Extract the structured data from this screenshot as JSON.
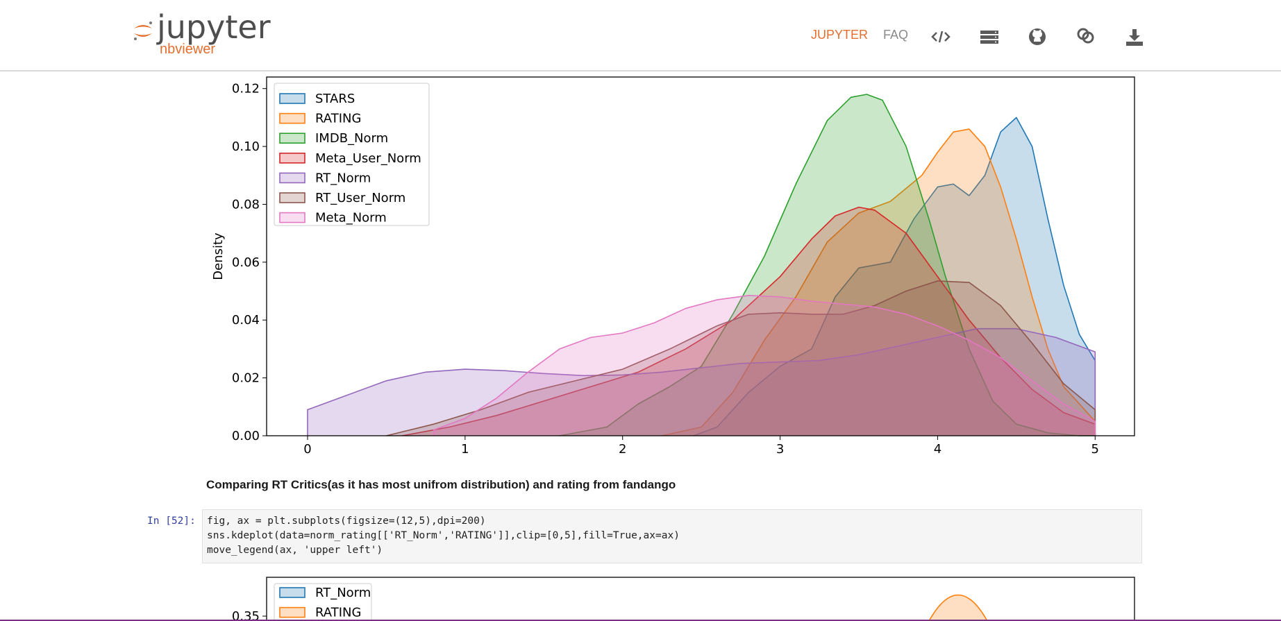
{
  "navbar": {
    "logo_name": "jupyter",
    "logo_sub": "nbviewer",
    "links": [
      {
        "label": "JUPYTER",
        "color": "#e46e2e"
      },
      {
        "label": "FAQ",
        "color": "#8a8a8a"
      }
    ],
    "icons": [
      "code-icon",
      "server-icon",
      "github-icon",
      "chain-icon",
      "download-icon"
    ]
  },
  "chart_data": [
    {
      "type": "area",
      "ylabel": "Density",
      "xlim": [
        -0.26,
        5.25
      ],
      "ylim": [
        0,
        0.124
      ],
      "xticks": [
        0,
        1,
        2,
        3,
        4,
        5
      ],
      "yticks": [
        "0.00",
        "0.02",
        "0.04",
        "0.06",
        "0.08",
        "0.10",
        "0.12"
      ],
      "legend": "upper left",
      "series": [
        {
          "name": "STARS",
          "color": "#1f77b4",
          "x": [
            2.45,
            2.6,
            2.8,
            3.0,
            3.2,
            3.35,
            3.5,
            3.7,
            3.85,
            4.0,
            4.1,
            4.2,
            4.3,
            4.4,
            4.5,
            4.6,
            4.7,
            4.8,
            4.9,
            5.0
          ],
          "y": [
            0,
            0.003,
            0.015,
            0.024,
            0.03,
            0.048,
            0.058,
            0.06,
            0.075,
            0.086,
            0.087,
            0.083,
            0.09,
            0.105,
            0.11,
            0.1,
            0.075,
            0.052,
            0.035,
            0.026
          ]
        },
        {
          "name": "RATING",
          "color": "#ff7f0e",
          "x": [
            2.25,
            2.5,
            2.7,
            2.9,
            3.1,
            3.3,
            3.5,
            3.7,
            3.9,
            4.0,
            4.1,
            4.2,
            4.3,
            4.4,
            4.5,
            4.6,
            4.7,
            4.8,
            5.0
          ],
          "y": [
            0,
            0.003,
            0.015,
            0.033,
            0.048,
            0.067,
            0.077,
            0.081,
            0.09,
            0.098,
            0.105,
            0.106,
            0.1,
            0.086,
            0.068,
            0.048,
            0.03,
            0.017,
            0.005
          ]
        },
        {
          "name": "IMDB_Norm",
          "color": "#2ca02c",
          "x": [
            1.6,
            1.9,
            2.1,
            2.3,
            2.5,
            2.7,
            2.9,
            3.1,
            3.3,
            3.45,
            3.55,
            3.65,
            3.8,
            3.95,
            4.05,
            4.2,
            4.35,
            4.5,
            4.7,
            4.9,
            5.0
          ],
          "y": [
            0,
            0.003,
            0.011,
            0.017,
            0.024,
            0.042,
            0.062,
            0.087,
            0.109,
            0.117,
            0.118,
            0.116,
            0.1,
            0.074,
            0.055,
            0.03,
            0.012,
            0.004,
            0.001,
            0,
            0
          ]
        },
        {
          "name": "Meta_User_Norm",
          "color": "#d62728",
          "x": [
            0.6,
            0.9,
            1.2,
            1.5,
            1.8,
            2.1,
            2.4,
            2.7,
            3.0,
            3.2,
            3.35,
            3.5,
            3.6,
            3.8,
            4.0,
            4.2,
            4.4,
            4.6,
            4.8,
            5.0
          ],
          "y": [
            0,
            0.003,
            0.007,
            0.012,
            0.017,
            0.022,
            0.03,
            0.04,
            0.055,
            0.068,
            0.076,
            0.079,
            0.078,
            0.07,
            0.055,
            0.04,
            0.027,
            0.016,
            0.008,
            0.004
          ]
        },
        {
          "name": "RT_Norm",
          "color": "#9467bd",
          "x": [
            0,
            0.25,
            0.5,
            0.75,
            1.0,
            1.25,
            1.5,
            1.75,
            2.0,
            2.25,
            2.5,
            2.75,
            3.0,
            3.25,
            3.5,
            3.75,
            4.0,
            4.25,
            4.5,
            4.75,
            5.0
          ],
          "y": [
            0.009,
            0.014,
            0.019,
            0.022,
            0.023,
            0.0225,
            0.0215,
            0.0208,
            0.021,
            0.022,
            0.0235,
            0.025,
            0.0255,
            0.026,
            0.028,
            0.031,
            0.034,
            0.037,
            0.037,
            0.034,
            0.029
          ]
        },
        {
          "name": "RT_User_Norm",
          "color": "#8c564b",
          "x": [
            0.5,
            0.8,
            1.1,
            1.4,
            1.7,
            2.0,
            2.3,
            2.6,
            2.8,
            3.0,
            3.2,
            3.4,
            3.6,
            3.8,
            4.0,
            4.2,
            4.4,
            4.6,
            4.8,
            5.0
          ],
          "y": [
            0,
            0.004,
            0.009,
            0.015,
            0.019,
            0.023,
            0.03,
            0.038,
            0.042,
            0.0425,
            0.042,
            0.042,
            0.045,
            0.05,
            0.0535,
            0.053,
            0.045,
            0.032,
            0.018,
            0.009
          ]
        },
        {
          "name": "Meta_Norm",
          "color": "#e377c2",
          "x": [
            0.8,
            1.0,
            1.2,
            1.4,
            1.6,
            1.8,
            2.0,
            2.2,
            2.4,
            2.6,
            2.8,
            3.0,
            3.2,
            3.4,
            3.6,
            3.8,
            4.0,
            4.2,
            4.4,
            4.6,
            4.8,
            5.0
          ],
          "y": [
            0.002,
            0.006,
            0.013,
            0.022,
            0.03,
            0.034,
            0.0355,
            0.039,
            0.044,
            0.047,
            0.0485,
            0.048,
            0.0465,
            0.0455,
            0.0445,
            0.042,
            0.038,
            0.033,
            0.027,
            0.019,
            0.011,
            0.005
          ]
        }
      ]
    },
    {
      "type": "area",
      "legend": "upper left",
      "yticks": [
        "0.35"
      ],
      "series": [
        {
          "name": "RT_Norm",
          "color": "#1f77b4"
        },
        {
          "name": "RATING",
          "color": "#ff7f0e"
        }
      ]
    }
  ],
  "markdown": {
    "heading": "Comparing RT Critics(as it has most unifrom distribution) and rating from fandango"
  },
  "code_cell": {
    "prompt": "In [52]:",
    "lines": [
      "fig, ax = plt.subplots(figsize=(12,5),dpi=200)",
      "sns.kdeplot(data=norm_rating[['RT_Norm','RATING']],clip=[0,5],fill=True,ax=ax)",
      "move_legend(ax, 'upper left')"
    ]
  }
}
